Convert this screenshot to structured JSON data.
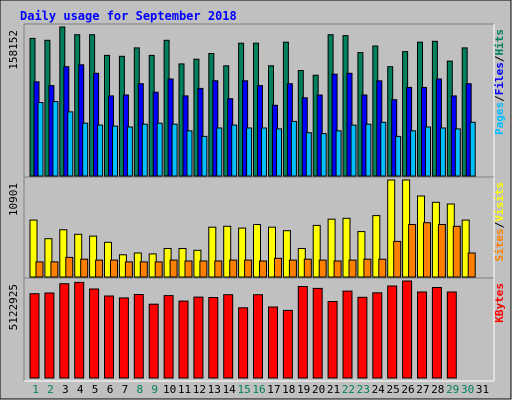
{
  "chart_data": [
    {
      "type": "bar",
      "title": "Daily usage for September 2018",
      "categories": [
        "1",
        "2",
        "3",
        "4",
        "5",
        "6",
        "7",
        "8",
        "9",
        "10",
        "11",
        "12",
        "13",
        "14",
        "15",
        "16",
        "17",
        "18",
        "19",
        "20",
        "21",
        "22",
        "23",
        "24",
        "25",
        "26",
        "27",
        "28",
        "29",
        "30",
        "31"
      ],
      "weekend_days": [
        "1",
        "2",
        "8",
        "9",
        "15",
        "16",
        "22",
        "23",
        "29",
        "30"
      ],
      "ymax_label": "158152",
      "ymax": 158152,
      "legend": [
        "Pages",
        "/",
        "Files",
        "/",
        "Hits"
      ],
      "series": [
        {
          "name": "Hits",
          "color": "#00805c",
          "values": [
            146000,
            144000,
            158152,
            150000,
            150000,
            128000,
            127000,
            136000,
            128000,
            144000,
            119000,
            124000,
            130000,
            117000,
            141000,
            141000,
            117000,
            142000,
            112000,
            107000,
            150000,
            149000,
            131000,
            138000,
            116000,
            132000,
            142000,
            143000,
            122000,
            136000,
            0
          ]
        },
        {
          "name": "Files",
          "color": "#0000ff",
          "values": [
            100000,
            96000,
            116000,
            118000,
            109000,
            85000,
            86000,
            98000,
            89000,
            103000,
            85000,
            93000,
            101000,
            82000,
            101000,
            96000,
            75000,
            98000,
            83000,
            86000,
            108000,
            109000,
            86000,
            101000,
            81000,
            94000,
            94000,
            103000,
            85000,
            98000,
            0
          ]
        },
        {
          "name": "Pages",
          "color": "#00c0ff",
          "values": [
            78000,
            79000,
            68000,
            56000,
            54000,
            53000,
            52000,
            55000,
            56000,
            55000,
            48000,
            42000,
            51000,
            54000,
            51000,
            51000,
            50000,
            58000,
            46000,
            45000,
            48000,
            54000,
            55000,
            57000,
            42000,
            48000,
            52000,
            51000,
            50000,
            57000,
            0
          ]
        }
      ]
    },
    {
      "type": "bar",
      "ymax_label": "10901",
      "ymax": 10901,
      "legend": [
        "Sites",
        "/",
        "Visits"
      ],
      "series": [
        {
          "name": "Visits",
          "color": "#ffff00",
          "values": [
            6400,
            4300,
            5300,
            4800,
            4600,
            3900,
            2500,
            2700,
            2600,
            3200,
            3200,
            3000,
            5600,
            5700,
            5500,
            5900,
            5600,
            5200,
            3200,
            5800,
            6500,
            6600,
            5100,
            6900,
            10901,
            10901,
            9100,
            8400,
            8200,
            6400,
            0
          ]
        },
        {
          "name": "Sites",
          "color": "#ff8000",
          "values": [
            1700,
            1700,
            2200,
            2000,
            1900,
            1900,
            1700,
            1700,
            1700,
            1900,
            1800,
            1800,
            1800,
            1900,
            1900,
            1800,
            2100,
            1900,
            2000,
            1900,
            1800,
            1900,
            2000,
            2000,
            4000,
            5900,
            6100,
            5900,
            5700,
            2700,
            0
          ]
        }
      ]
    },
    {
      "type": "bar",
      "ymax_label": "5122925",
      "ymax": 5122925,
      "legend": [
        "KBytes"
      ],
      "series": [
        {
          "name": "KBytes",
          "color": "#ff0000",
          "values": [
            4450000,
            4490000,
            4980000,
            5050000,
            4700000,
            4330000,
            4230000,
            4410000,
            3900000,
            4350000,
            4060000,
            4270000,
            4250000,
            4400000,
            3710000,
            4400000,
            3750000,
            3570000,
            4830000,
            4730000,
            4040000,
            4590000,
            4260000,
            4500000,
            4860000,
            5122925,
            4540000,
            4780000,
            4540000,
            0
          ]
        }
      ]
    }
  ],
  "colors": {
    "background": "#c0c0c0",
    "title": "#0000ff",
    "bar_outline": "#000000",
    "axis_label": "#000000",
    "weekend_label": "#00805c",
    "weekday_label": "#000000",
    "legend_separator": "#000000"
  }
}
